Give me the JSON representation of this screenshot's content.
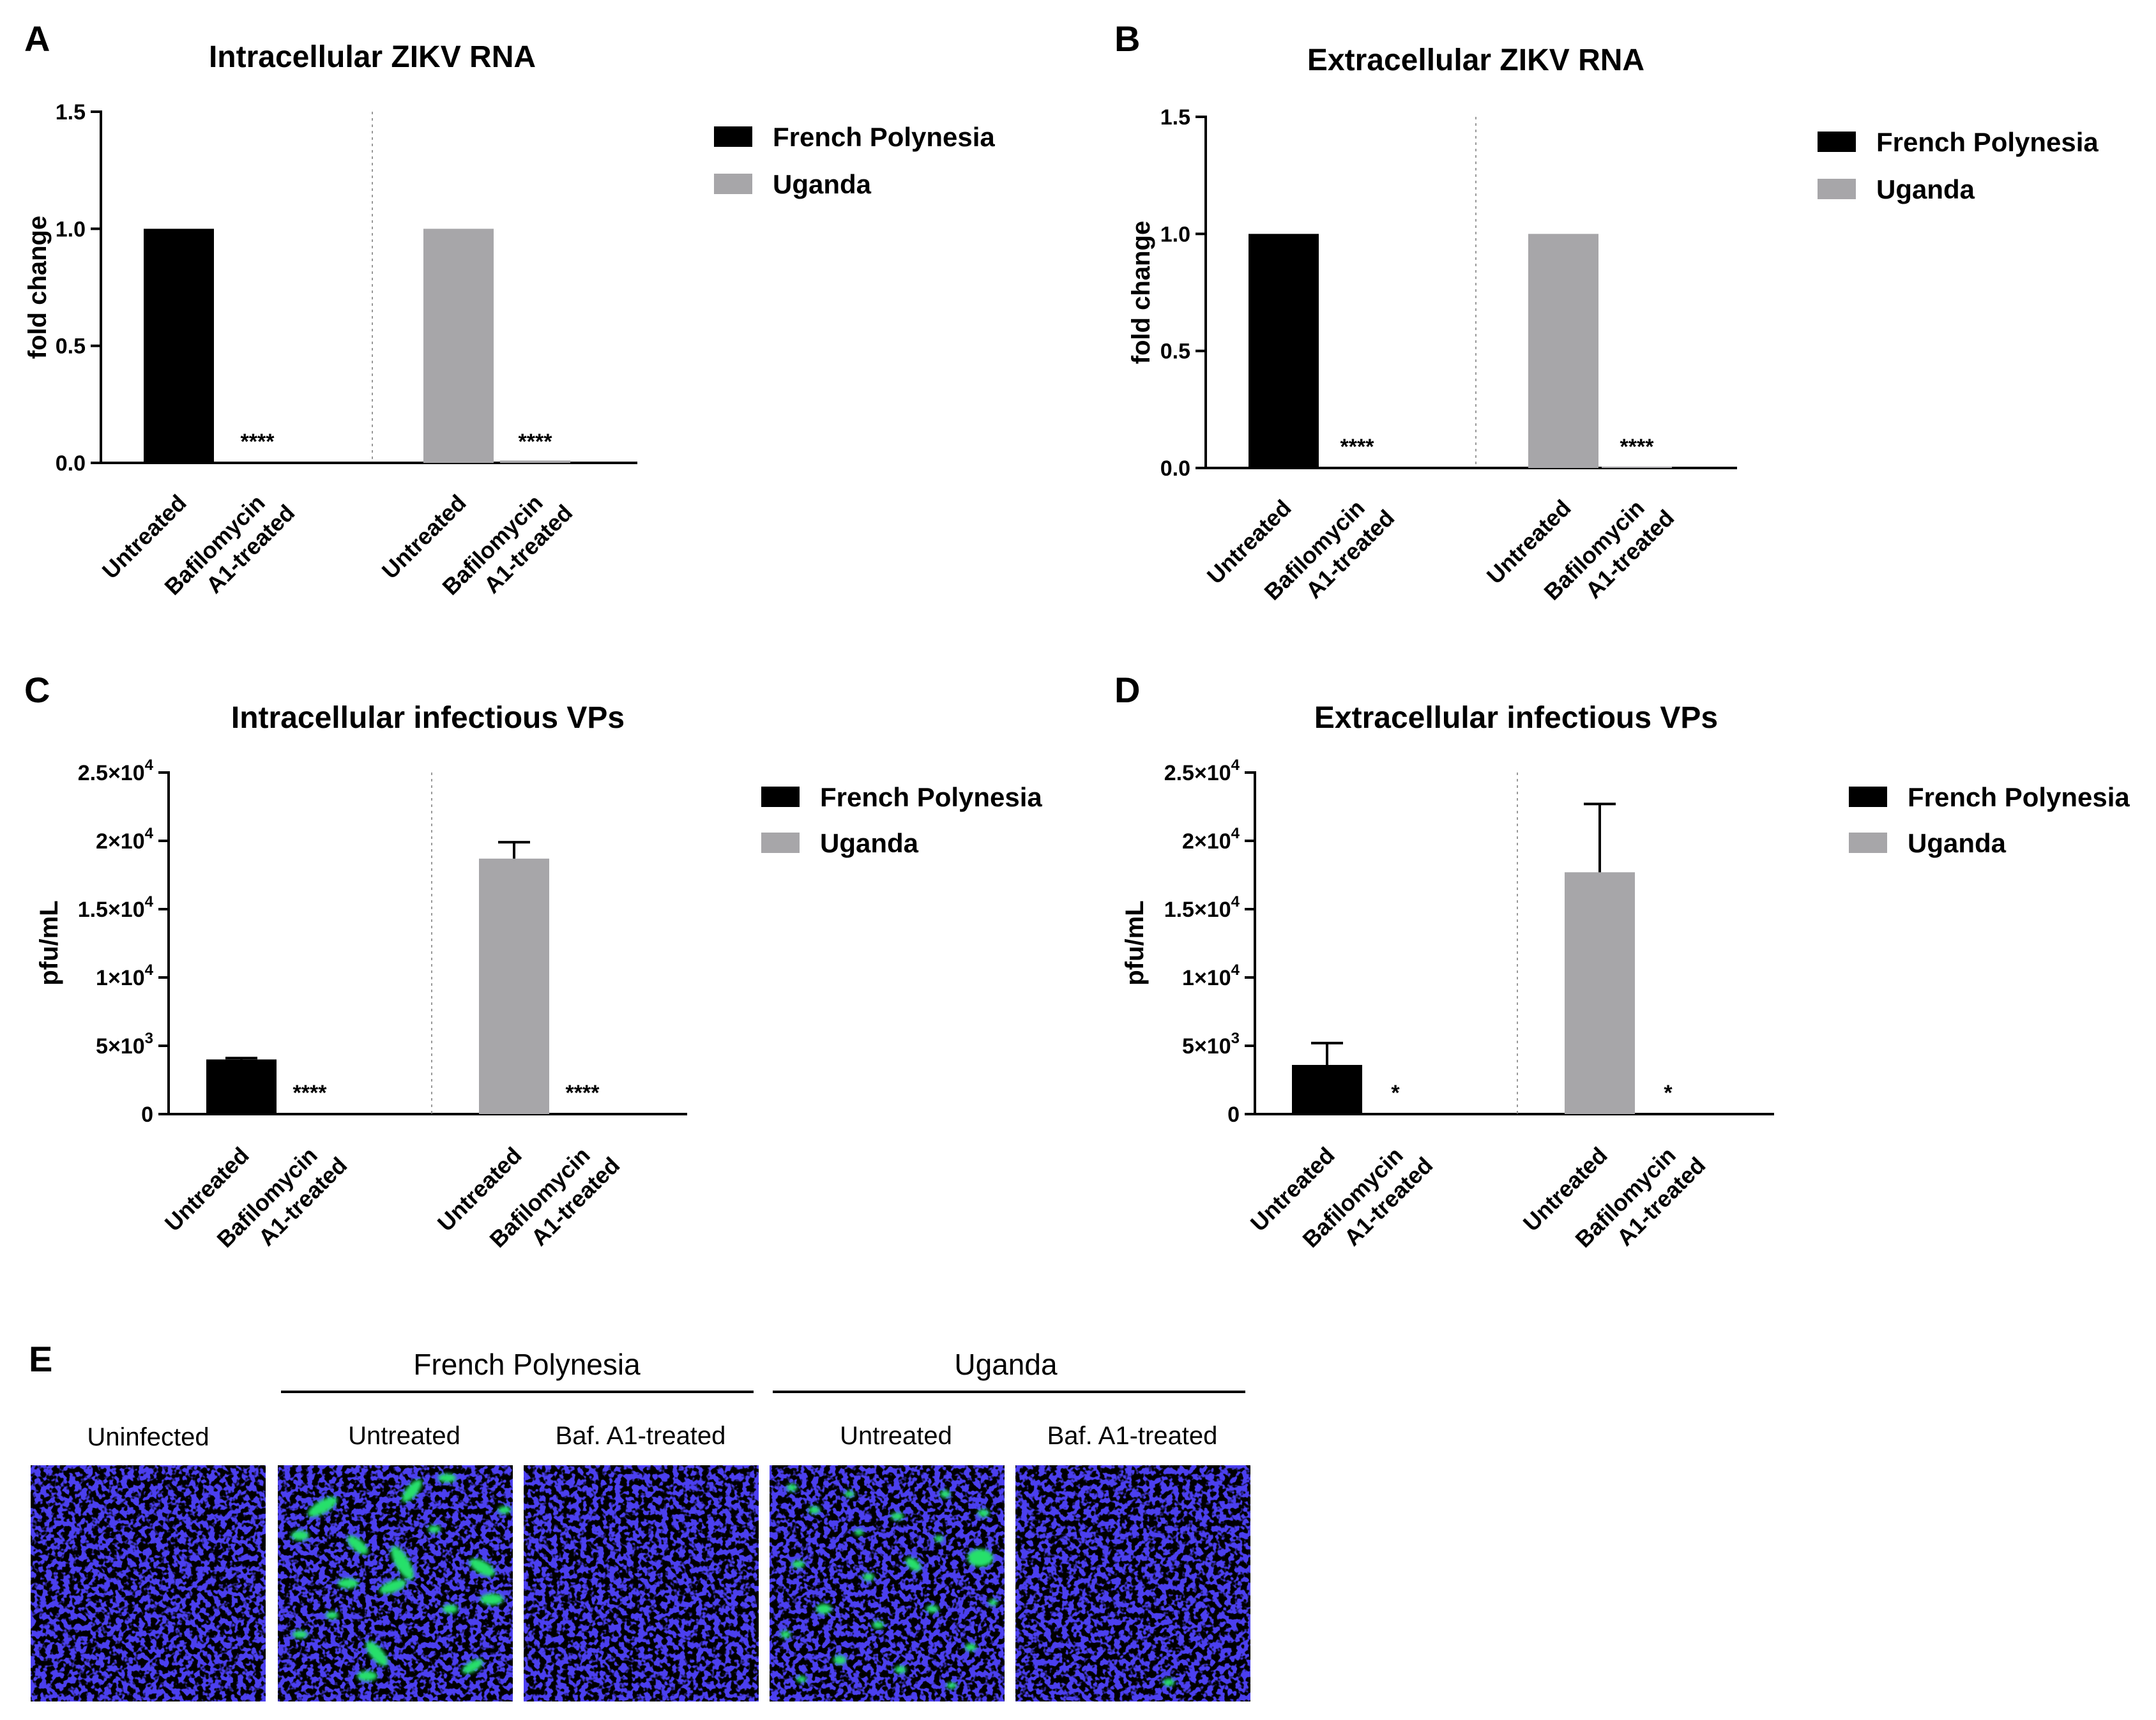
{
  "colors": {
    "french_polynesia": "#000000",
    "uganda": "#a7a6a9",
    "nuclei": "#1c14d6",
    "virus": "#27e06a"
  },
  "chart_data": [
    {
      "panel": "A",
      "type": "bar",
      "title": "Intracellular ZIKV RNA",
      "ylabel": "fold change",
      "ylim": [
        0,
        1.5
      ],
      "yticks": [
        0,
        0.5,
        1.0,
        1.5
      ],
      "ytick_labels": [
        "0.0",
        "0.5",
        "1.0",
        "1.5"
      ],
      "groups": [
        "French Polynesia",
        "Uganda"
      ],
      "categories": [
        "Untreated",
        "Bafilomycin A1-treated",
        "Untreated",
        "Bafilomycin A1-treated"
      ],
      "category_lines": [
        [
          "Untreated"
        ],
        [
          "Bafilomycin",
          "A1-treated"
        ],
        [
          "Untreated"
        ],
        [
          "Bafilomycin",
          "A1-treated"
        ]
      ],
      "values": [
        1.0,
        0.003,
        1.0,
        0.01
      ],
      "errors": [
        0,
        0,
        0,
        0
      ],
      "series_index": [
        0,
        0,
        1,
        1
      ],
      "significance": [
        "",
        "****",
        "",
        "****"
      ],
      "legend": [
        "French Polynesia",
        "Uganda"
      ]
    },
    {
      "panel": "B",
      "type": "bar",
      "title": "Extracellular ZIKV RNA",
      "ylabel": "fold change",
      "ylim": [
        0,
        1.5
      ],
      "yticks": [
        0,
        0.5,
        1.0,
        1.5
      ],
      "ytick_labels": [
        "0.0",
        "0.5",
        "1.0",
        "1.5"
      ],
      "groups": [
        "French Polynesia",
        "Uganda"
      ],
      "categories": [
        "Untreated",
        "Bafilomycin A1-treated",
        "Untreated",
        "Bafilomycin A1-treated"
      ],
      "category_lines": [
        [
          "Untreated"
        ],
        [
          "Bafilomycin",
          "A1-treated"
        ],
        [
          "Untreated"
        ],
        [
          "Bafilomycin",
          "A1-treated"
        ]
      ],
      "values": [
        1.0,
        0.002,
        1.0,
        0.006
      ],
      "errors": [
        0,
        0,
        0,
        0
      ],
      "series_index": [
        0,
        0,
        1,
        1
      ],
      "significance": [
        "",
        "****",
        "",
        "****"
      ],
      "legend": [
        "French Polynesia",
        "Uganda"
      ]
    },
    {
      "panel": "C",
      "type": "bar",
      "title": "Intracellular infectious VPs",
      "ylabel": "pfu/mL",
      "ylim": [
        0,
        25000
      ],
      "yticks": [
        0,
        5000,
        10000,
        15000,
        20000,
        25000
      ],
      "ytick_labels": [
        [
          "0",
          ""
        ],
        [
          "5×10",
          "3"
        ],
        [
          "1×10",
          "4"
        ],
        [
          "1.5×10",
          "4"
        ],
        [
          "2×10",
          "4"
        ],
        [
          "2.5×10",
          "4"
        ]
      ],
      "groups": [
        "French Polynesia",
        "Uganda"
      ],
      "categories": [
        "Untreated",
        "Bafilomycin A1-treated",
        "Untreated",
        "Bafilomycin A1-treated"
      ],
      "category_lines": [
        [
          "Untreated"
        ],
        [
          "Bafilomycin",
          "A1-treated"
        ],
        [
          "Untreated"
        ],
        [
          "Bafilomycin",
          "A1-treated"
        ]
      ],
      "values": [
        4000,
        0,
        18700,
        0
      ],
      "errors": [
        100,
        0,
        1200,
        0
      ],
      "series_index": [
        0,
        0,
        1,
        1
      ],
      "significance": [
        "",
        "****",
        "",
        "****"
      ],
      "legend": [
        "French Polynesia",
        "Uganda"
      ]
    },
    {
      "panel": "D",
      "type": "bar",
      "title": "Extracellular infectious VPs",
      "ylabel": "pfu/mL",
      "ylim": [
        0,
        25000
      ],
      "yticks": [
        0,
        5000,
        10000,
        15000,
        20000,
        25000
      ],
      "ytick_labels": [
        [
          "0",
          ""
        ],
        [
          "5×10",
          "3"
        ],
        [
          "1×10",
          "4"
        ],
        [
          "1.5×10",
          "4"
        ],
        [
          "2×10",
          "4"
        ],
        [
          "2.5×10",
          "4"
        ]
      ],
      "groups": [
        "French Polynesia",
        "Uganda"
      ],
      "categories": [
        "Untreated",
        "Bafilomycin A1-treated",
        "Untreated",
        "Bafilomycin A1-treated"
      ],
      "category_lines": [
        [
          "Untreated"
        ],
        [
          "Bafilomycin",
          "A1-treated"
        ],
        [
          "Untreated"
        ],
        [
          "Bafilomycin",
          "A1-treated"
        ]
      ],
      "values": [
        3600,
        0,
        17700,
        0
      ],
      "errors": [
        1600,
        0,
        5000,
        0
      ],
      "series_index": [
        0,
        0,
        1,
        1
      ],
      "significance": [
        "",
        "*",
        "",
        "*"
      ],
      "legend": [
        "French Polynesia",
        "Uganda"
      ]
    }
  ],
  "panel_e": {
    "letter": "E",
    "groups": [
      "French Polynesia",
      "Uganda"
    ],
    "conditions": [
      "Uninfected",
      "Untreated",
      "Baf. A1-treated",
      "Untreated",
      "Baf. A1-treated"
    ],
    "green_signal": [
      "none",
      "high",
      "none",
      "high",
      "very low"
    ]
  }
}
